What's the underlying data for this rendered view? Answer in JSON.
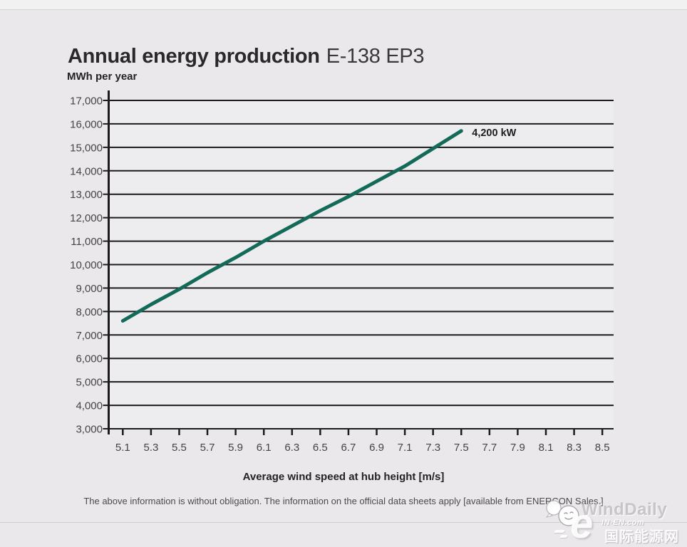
{
  "page": {
    "title_main": "Annual energy production",
    "title_model": "E-138 EP3",
    "footer_note": "The above information is without obligation. The information on the official data sheets apply [available from ENERCON Sales.]"
  },
  "chart_data": {
    "type": "line",
    "title": "Annual energy production E-138 EP3",
    "ylabel": "MWh per year",
    "xlabel": "Average wind speed at hub height [m/s]",
    "grid": "horizontal",
    "xlim": [
      5.0,
      8.58
    ],
    "ylim": [
      3000,
      17000
    ],
    "x_ticks": [
      "5.1",
      "5.3",
      "5.5",
      "5.7",
      "5.9",
      "6.1",
      "6.3",
      "6.5",
      "6.7",
      "6.9",
      "7.1",
      "7.3",
      "7.5",
      "7.7",
      "7.9",
      "8.1",
      "8.3",
      "8.5"
    ],
    "y_ticks": [
      3000,
      4000,
      5000,
      6000,
      7000,
      8000,
      9000,
      10000,
      11000,
      12000,
      13000,
      14000,
      15000,
      16000,
      17000
    ],
    "y_tick_labels": [
      "3,000",
      "4,000",
      "5,000",
      "6,000",
      "7,000",
      "8,000",
      "9,000",
      "10,000",
      "11,000",
      "12,000",
      "13,000",
      "14,000",
      "15,000",
      "16,000",
      "17,000"
    ],
    "x": [
      5.1,
      5.3,
      5.5,
      5.7,
      5.9,
      6.1,
      6.3,
      6.5,
      6.7,
      6.9,
      7.1,
      7.3,
      7.5
    ],
    "series": [
      {
        "name": "4,200 kW",
        "values": [
          7600,
          8300,
          8950,
          9650,
          10300,
          11000,
          11650,
          12300,
          12900,
          13550,
          14200,
          14950,
          15700
        ],
        "color": "#136a58"
      }
    ],
    "annotation": "4,200 kW",
    "colors": {
      "grid": "#1d1c1d",
      "axis": "#1d1c1d",
      "tick_label": "#454445",
      "plot_bg": "#edecee",
      "annotation_text": "#1e1d1e"
    }
  },
  "watermark": {
    "brand": "WindDaily",
    "site": "IN-EN.com",
    "site_cn": "国际能源网",
    "logo_letter": "e"
  }
}
